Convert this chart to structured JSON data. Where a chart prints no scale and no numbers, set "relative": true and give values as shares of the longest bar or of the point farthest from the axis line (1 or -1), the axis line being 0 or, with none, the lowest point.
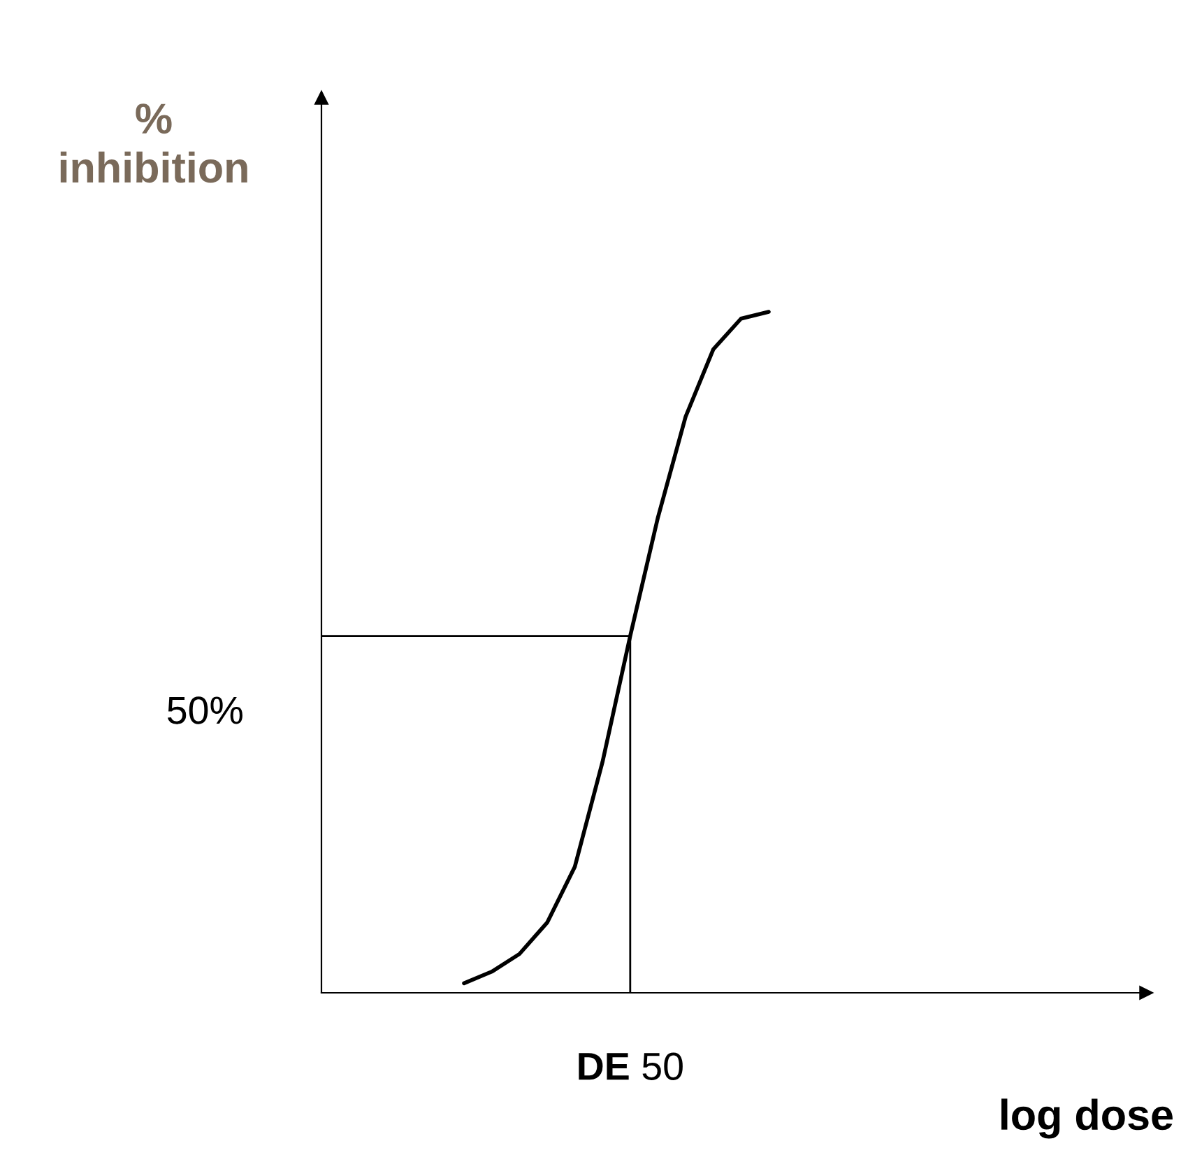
{
  "chart_data": {
    "type": "line",
    "relative": true,
    "categories": [
      null,
      null,
      null,
      null,
      null,
      null,
      null,
      null,
      null,
      null,
      null,
      null
    ],
    "series": [
      {
        "color": "#000000",
        "values": [
          0.014,
          0.031,
          0.057,
          0.103,
          0.185,
          0.339,
          0.524,
          0.698,
          0.846,
          0.945,
          0.99,
          1
        ]
      }
    ],
    "ref_lines": [
      {
        "axis": "y",
        "value": 0.524,
        "color": "#000000"
      }
    ],
    "annotations": [
      "%\ninhibition",
      "log dose",
      "50%",
      "DE 50"
    ],
    "legend": false,
    "marker": "none",
    "line_style": "solid"
  }
}
